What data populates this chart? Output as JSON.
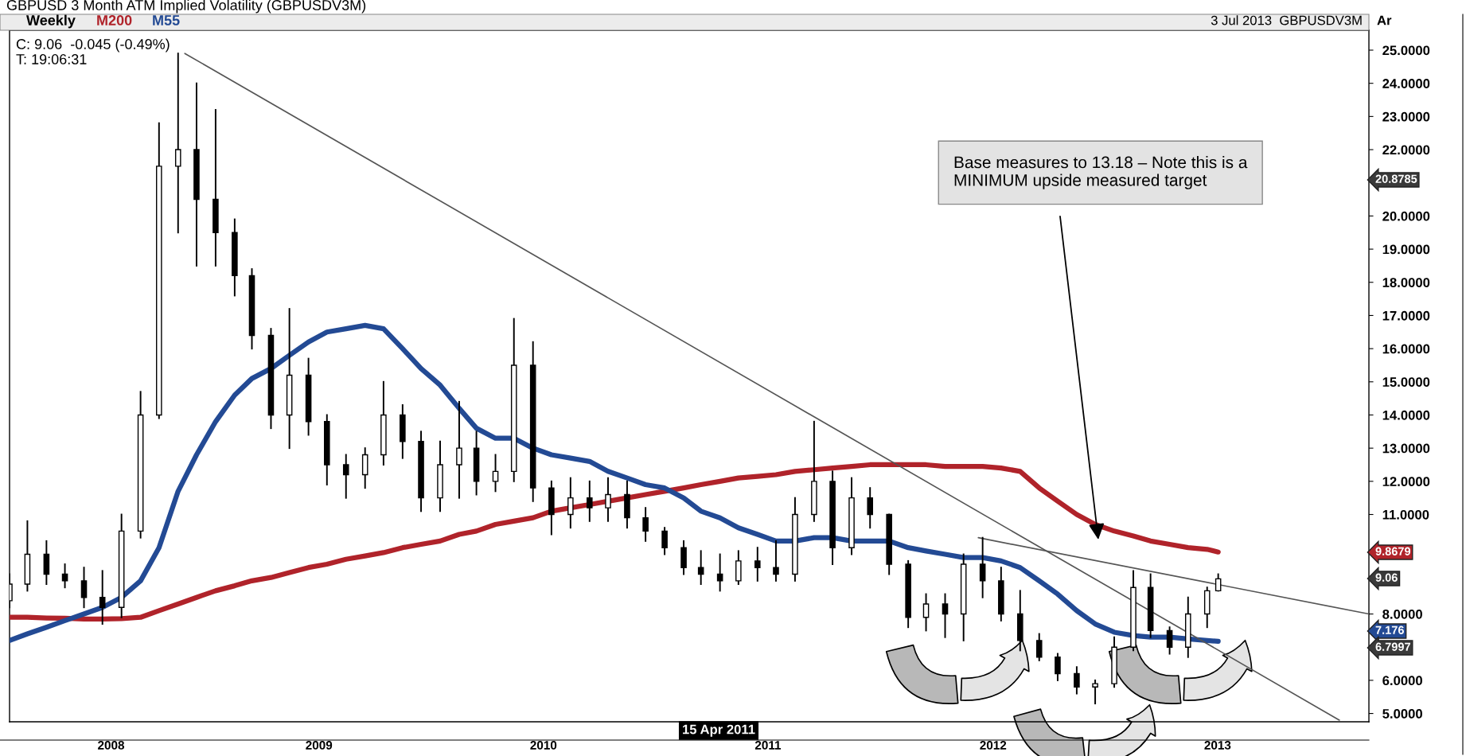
{
  "chart_data": {
    "type": "candlestick",
    "title": "GBPUSD 3 Month ATM Implied Volatility (GBPUSDV3M)",
    "x": [
      "2008-02-15",
      "2008-03-15",
      "2008-04-15",
      "2008-05-15",
      "2008-06-15",
      "2008-07-15",
      "2008-08-15",
      "2008-09-15",
      "2008-10-15",
      "2008-11-15",
      "2008-12-15",
      "2009-01-15",
      "2009-02-15",
      "2009-03-15",
      "2009-04-15",
      "2009-05-15",
      "2009-06-15",
      "2009-07-15",
      "2009-08-15",
      "2009-09-15",
      "2009-10-15",
      "2009-11-15",
      "2009-12-15",
      "2010-01-15",
      "2010-02-15",
      "2010-03-15",
      "2010-04-15",
      "2010-05-15",
      "2010-06-15",
      "2010-07-15",
      "2010-08-15",
      "2010-09-15",
      "2010-10-15",
      "2010-11-15",
      "2010-12-15",
      "2011-01-15",
      "2011-02-15",
      "2011-03-15",
      "2011-04-15",
      "2011-05-15",
      "2011-06-15",
      "2011-07-15",
      "2011-08-15",
      "2011-09-15",
      "2011-10-15",
      "2011-11-15",
      "2011-12-15",
      "2012-01-15",
      "2012-02-15",
      "2012-03-15",
      "2012-04-15",
      "2012-05-15",
      "2012-06-15",
      "2012-07-15",
      "2012-08-15",
      "2012-09-15",
      "2012-10-15",
      "2012-11-15",
      "2012-12-15",
      "2013-01-15",
      "2013-02-15",
      "2013-03-15",
      "2013-04-15",
      "2013-05-15",
      "2013-06-15",
      "2013-07-03"
    ],
    "ohlc": [
      [
        8.4,
        9.2,
        8.2,
        8.9
      ],
      [
        8.9,
        10.8,
        8.7,
        9.8
      ],
      [
        9.8,
        10.2,
        8.9,
        9.2
      ],
      [
        9.2,
        9.5,
        8.8,
        9.0
      ],
      [
        9.0,
        9.4,
        8.2,
        8.5
      ],
      [
        8.5,
        9.3,
        7.7,
        8.2
      ],
      [
        8.2,
        11.0,
        7.9,
        10.5
      ],
      [
        10.5,
        14.7,
        10.3,
        14.0
      ],
      [
        14.0,
        22.8,
        13.9,
        21.5
      ],
      [
        21.5,
        24.9,
        19.5,
        22.0
      ],
      [
        22.0,
        24.0,
        18.5,
        20.5
      ],
      [
        20.5,
        23.2,
        18.5,
        19.5
      ],
      [
        19.5,
        19.9,
        17.6,
        18.2
      ],
      [
        18.2,
        18.4,
        16.0,
        16.4
      ],
      [
        16.4,
        16.6,
        13.6,
        14.0
      ],
      [
        14.0,
        17.2,
        13.0,
        15.2
      ],
      [
        15.2,
        15.7,
        13.4,
        13.8
      ],
      [
        13.8,
        14.0,
        11.9,
        12.5
      ],
      [
        12.5,
        12.8,
        11.5,
        12.2
      ],
      [
        12.2,
        13.0,
        11.8,
        12.8
      ],
      [
        12.8,
        15.0,
        12.5,
        14.0
      ],
      [
        14.0,
        14.3,
        12.7,
        13.2
      ],
      [
        13.2,
        13.5,
        11.1,
        11.5
      ],
      [
        11.5,
        13.2,
        11.1,
        12.5
      ],
      [
        12.5,
        14.4,
        11.5,
        13.0
      ],
      [
        13.0,
        13.5,
        11.6,
        12.0
      ],
      [
        12.0,
        12.8,
        11.7,
        12.3
      ],
      [
        12.3,
        16.9,
        12.0,
        15.5
      ],
      [
        15.5,
        16.2,
        11.4,
        11.8
      ],
      [
        11.8,
        12.0,
        10.4,
        11.0
      ],
      [
        11.0,
        12.1,
        10.6,
        11.5
      ],
      [
        11.5,
        12.0,
        10.8,
        11.2
      ],
      [
        11.2,
        12.1,
        10.8,
        11.6
      ],
      [
        11.6,
        12.0,
        10.6,
        10.9
      ],
      [
        10.9,
        11.2,
        10.2,
        10.5
      ],
      [
        10.5,
        10.6,
        9.8,
        10.0
      ],
      [
        10.0,
        10.2,
        9.2,
        9.4
      ],
      [
        9.4,
        9.9,
        8.9,
        9.2
      ],
      [
        9.2,
        9.8,
        8.7,
        9.0
      ],
      [
        9.0,
        9.9,
        8.9,
        9.6
      ],
      [
        9.6,
        10.0,
        9.0,
        9.4
      ],
      [
        9.4,
        10.2,
        9.0,
        9.2
      ],
      [
        9.2,
        11.5,
        9.0,
        11.0
      ],
      [
        11.0,
        13.8,
        10.8,
        12.0
      ],
      [
        12.0,
        12.3,
        9.5,
        10.0
      ],
      [
        10.0,
        12.1,
        9.8,
        11.5
      ],
      [
        11.5,
        11.8,
        10.6,
        11.0
      ],
      [
        11.0,
        11.0,
        9.2,
        9.5
      ],
      [
        9.5,
        9.6,
        7.6,
        7.9
      ],
      [
        7.9,
        8.6,
        7.5,
        8.3
      ],
      [
        8.3,
        8.6,
        7.3,
        8.0
      ],
      [
        8.0,
        9.8,
        7.2,
        9.5
      ],
      [
        9.5,
        10.3,
        8.5,
        9.0
      ],
      [
        9.0,
        9.4,
        7.8,
        8.0
      ],
      [
        8.0,
        8.7,
        6.9,
        7.2
      ],
      [
        7.2,
        7.4,
        6.6,
        6.7
      ],
      [
        6.7,
        6.8,
        6.0,
        6.2
      ],
      [
        6.2,
        6.4,
        5.6,
        5.8
      ],
      [
        5.8,
        6.0,
        5.3,
        5.9
      ],
      [
        5.9,
        7.3,
        5.8,
        7.0
      ],
      [
        7.0,
        9.3,
        6.9,
        8.8
      ],
      [
        8.8,
        9.2,
        7.3,
        7.5
      ],
      [
        7.5,
        7.6,
        6.8,
        7.0
      ],
      [
        7.0,
        8.5,
        6.7,
        8.0
      ],
      [
        8.0,
        8.8,
        7.6,
        8.7
      ],
      [
        8.7,
        9.2,
        8.7,
        9.06
      ]
    ],
    "series": [
      {
        "name": "M200",
        "type": "line",
        "color": "#b0232a",
        "values": [
          7.9,
          7.9,
          7.88,
          7.87,
          7.85,
          7.85,
          7.86,
          7.9,
          8.1,
          8.3,
          8.5,
          8.7,
          8.85,
          9.0,
          9.1,
          9.25,
          9.4,
          9.5,
          9.65,
          9.75,
          9.85,
          10.0,
          10.1,
          10.2,
          10.4,
          10.5,
          10.7,
          10.8,
          10.9,
          11.1,
          11.2,
          11.3,
          11.4,
          11.5,
          11.6,
          11.7,
          11.8,
          11.9,
          12.0,
          12.1,
          12.15,
          12.2,
          12.3,
          12.35,
          12.4,
          12.45,
          12.5,
          12.5,
          12.5,
          12.5,
          12.45,
          12.45,
          12.45,
          12.4,
          12.3,
          11.8,
          11.4,
          11.0,
          10.7,
          10.5,
          10.35,
          10.2,
          10.1,
          10.0,
          9.95,
          9.8679
        ]
      },
      {
        "name": "M55",
        "type": "line",
        "color": "#234a94",
        "values": [
          7.2,
          7.4,
          7.6,
          7.8,
          8.0,
          8.2,
          8.5,
          9.0,
          10.0,
          11.7,
          12.8,
          13.8,
          14.6,
          15.1,
          15.4,
          15.8,
          16.2,
          16.5,
          16.6,
          16.7,
          16.6,
          16.0,
          15.4,
          14.9,
          14.2,
          13.6,
          13.3,
          13.3,
          13.0,
          12.8,
          12.7,
          12.6,
          12.3,
          12.1,
          11.9,
          11.8,
          11.5,
          11.1,
          10.9,
          10.6,
          10.4,
          10.2,
          10.2,
          10.3,
          10.3,
          10.2,
          10.2,
          10.2,
          10.0,
          9.9,
          9.8,
          9.7,
          9.7,
          9.6,
          9.4,
          9.0,
          8.6,
          8.1,
          7.7,
          7.45,
          7.35,
          7.3,
          7.3,
          7.25,
          7.2,
          7.176
        ]
      },
      {
        "type": "line",
        "color": "#555555",
        "x": [
          "2008-11-26",
          "2014-01-16"
        ],
        "values": [
          24.9,
          4.8
        ]
      },
      {
        "type": "line",
        "color": "#555555",
        "x": [
          "2012-06-08",
          "2014-03-05"
        ],
        "values": [
          10.3,
          8.0
        ]
      }
    ],
    "xlim": [
      "2008-02-15",
      "2014-03-05"
    ],
    "xticks": [
      {
        "value": "2008-07-29",
        "label": "2008"
      },
      {
        "value": "2009-07-02",
        "label": "2009"
      },
      {
        "value": "2010-07-02",
        "label": "2010"
      },
      {
        "value": "2011-07-02",
        "label": "2011"
      },
      {
        "value": "2012-07-02",
        "label": "2012"
      },
      {
        "value": "2013-07-02",
        "label": "2013"
      }
    ],
    "ylim": [
      4.75,
      25.6
    ],
    "yticks": [
      {
        "value": 5,
        "label": "5.0000"
      },
      {
        "value": 6,
        "label": "6.0000"
      },
      {
        "value": 8,
        "label": "8.0000"
      },
      {
        "value": 11,
        "label": "11.0000"
      },
      {
        "value": 12,
        "label": "12.0000"
      },
      {
        "value": 13,
        "label": "13.0000"
      },
      {
        "value": 14,
        "label": "14.0000"
      },
      {
        "value": 15,
        "label": "15.0000"
      },
      {
        "value": 16,
        "label": "16.0000"
      },
      {
        "value": 17,
        "label": "17.0000"
      },
      {
        "value": 18,
        "label": "18.0000"
      },
      {
        "value": 19,
        "label": "19.0000"
      },
      {
        "value": 20,
        "label": "20.0000"
      },
      {
        "value": 22,
        "label": "22.0000"
      },
      {
        "value": 23,
        "label": "23.0000"
      },
      {
        "value": 24,
        "label": "24.0000"
      },
      {
        "value": 25,
        "label": "25.0000"
      }
    ],
    "legend": "top left",
    "annotations": [
      "Weekly",
      "3 Jul 2013  GBPUSDV3M",
      "Ar",
      "C: 9.06  -0.045 (-0.49%)",
      "T: 19:06:31",
      "20.8785",
      "9.8679",
      "9.06",
      "7.176",
      "6.7997",
      "15 Apr 2011",
      "Base measures to 13.18 – Note this is a MINIMUM upside measured target"
    ]
  }
}
